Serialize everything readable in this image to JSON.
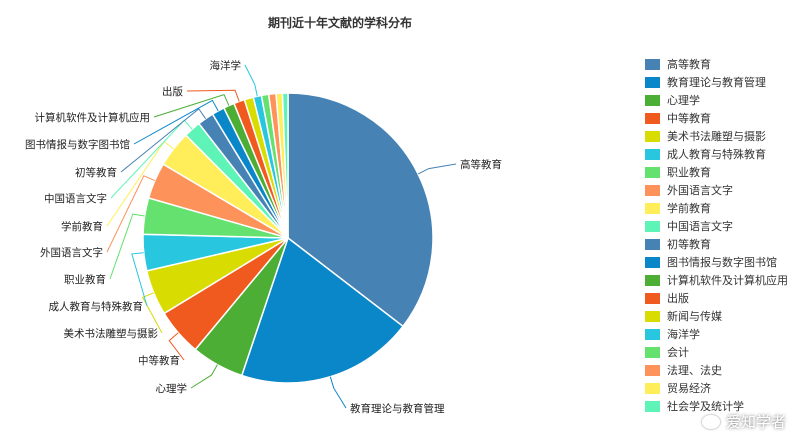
{
  "chart_data": {
    "type": "pie",
    "title": "期刊近十年文献的学科分布",
    "legend_position": "right",
    "categories": [
      "高等教育",
      "教育理论与教育管理",
      "心理学",
      "中等教育",
      "美术书法雕塑与摄影",
      "成人教育与特殊教育",
      "职业教育",
      "外国语言文字",
      "学前教育",
      "中国语言文字",
      "初等教育",
      "图书情报与数字图书馆",
      "计算机软件及计算机应用",
      "出版",
      "新闻与传媒",
      "海洋学",
      "会计",
      "法理、法史",
      "贸易经济",
      "社会学及统计学"
    ],
    "values": [
      35.0,
      19.5,
      5.8,
      5.2,
      5.0,
      4.0,
      4.0,
      4.0,
      4.0,
      1.9,
      1.8,
      1.4,
      1.2,
      1.2,
      1.0,
      0.9,
      0.8,
      0.8,
      0.7,
      0.6
    ],
    "colors": [
      "#4682b4",
      "#0a87c8",
      "#4cae34",
      "#f05a1e",
      "#d8dc00",
      "#29c6e0",
      "#64e16e",
      "#fd925a",
      "#ffee59",
      "#5ef4b7",
      "#4682b4",
      "#0a87c8",
      "#4cae34",
      "#f05a1e",
      "#d8dc00",
      "#29c6e0",
      "#64e16e",
      "#fd925a",
      "#ffee59",
      "#5ef4b7"
    ],
    "outer_labels": [
      "高等教育",
      "教育理论与教育管理",
      "心理学",
      "中等教育",
      "美术书法雕塑与摄影",
      "成人教育与特殊教育",
      "职业教育",
      "外国语言文字",
      "学前教育",
      "中国语言文字",
      "初等教育",
      "图书情报与数字图书馆",
      "计算机软件及计算机应用",
      "出版",
      "",
      "海洋学",
      "",
      "",
      "",
      ""
    ]
  },
  "watermark": {
    "icon": "wechat-icon",
    "text": "爱知学者"
  }
}
